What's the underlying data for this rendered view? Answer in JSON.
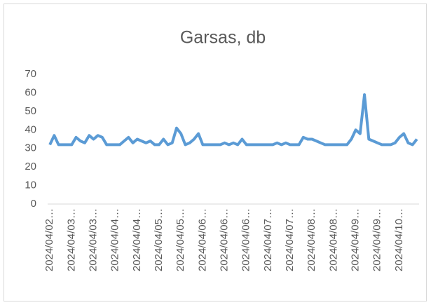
{
  "chart_data": {
    "type": "line",
    "title": "Garsas, db",
    "categories": [
      "2024/04/02…",
      null,
      null,
      null,
      null,
      "2024/04/03…",
      null,
      null,
      null,
      null,
      "2024/04/03…",
      null,
      null,
      null,
      null,
      "2024/04/04…",
      null,
      null,
      null,
      null,
      "2024/04/04…",
      null,
      null,
      null,
      null,
      "2024/04/05…",
      null,
      null,
      null,
      null,
      "2024/04/05…",
      null,
      null,
      null,
      null,
      "2024/04/06…",
      null,
      null,
      null,
      null,
      "2024/04/06…",
      null,
      null,
      null,
      null,
      "2024/04/06…",
      null,
      null,
      null,
      null,
      "2024/04/07…",
      null,
      null,
      null,
      null,
      "2024/04/07…",
      null,
      null,
      null,
      null,
      "2024/04/08…",
      null,
      null,
      null,
      null,
      "2024/04/08…",
      null,
      null,
      null,
      null,
      "2024/04/09…",
      null,
      null,
      null,
      null,
      "2024/04/09…",
      null,
      null,
      null,
      null,
      "2024/04/10…",
      null,
      null,
      null,
      null
    ],
    "values": [
      32,
      37,
      32,
      32,
      32,
      32,
      36,
      34,
      33,
      37,
      35,
      37,
      36,
      32,
      32,
      32,
      32,
      34,
      36,
      33,
      35,
      34,
      33,
      34,
      32,
      32,
      35,
      32,
      33,
      41,
      38,
      32,
      33,
      35,
      38,
      32,
      32,
      32,
      32,
      32,
      33,
      32,
      33,
      32,
      35,
      32,
      32,
      32,
      32,
      32,
      32,
      32,
      33,
      32,
      33,
      32,
      32,
      32,
      36,
      35,
      35,
      34,
      33,
      32,
      32,
      32,
      32,
      32,
      32,
      35,
      40,
      38,
      59,
      35,
      34,
      33,
      32,
      32,
      32,
      33,
      36,
      38,
      33,
      32,
      35
    ],
    "color": "#5b9bd5",
    "ylim": [
      0,
      70
    ],
    "yticks": [
      0,
      10,
      20,
      30,
      40,
      50,
      60,
      70
    ],
    "grid": false
  }
}
